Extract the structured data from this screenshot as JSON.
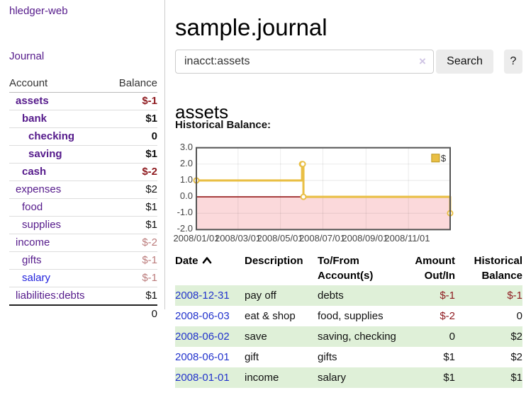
{
  "sidebar": {
    "app_title": "hledger-web",
    "journal_link": "Journal",
    "table": {
      "account_header": "Account",
      "balance_header": "Balance",
      "rows": [
        {
          "name": "assets",
          "depth": 1,
          "bold": true,
          "balance": "$-1",
          "balance_class": "neg-strong",
          "link": "purple"
        },
        {
          "name": "bank",
          "depth": 2,
          "bold": true,
          "balance": "$1",
          "balance_class": "",
          "link": "purple"
        },
        {
          "name": "checking",
          "depth": 3,
          "bold": true,
          "balance": "0",
          "balance_class": "",
          "link": "purple"
        },
        {
          "name": "saving",
          "depth": 3,
          "bold": true,
          "balance": "$1",
          "balance_class": "",
          "link": "purple"
        },
        {
          "name": "cash",
          "depth": 2,
          "bold": true,
          "balance": "$-2",
          "balance_class": "neg-strong",
          "link": "purple"
        },
        {
          "name": "expenses",
          "depth": 1,
          "bold": false,
          "balance": "$2",
          "balance_class": "",
          "link": "purple"
        },
        {
          "name": "food",
          "depth": 2,
          "bold": false,
          "balance": "$1",
          "balance_class": "",
          "link": "purple"
        },
        {
          "name": "supplies",
          "depth": 2,
          "bold": false,
          "balance": "$1",
          "balance_class": "",
          "link": "purple"
        },
        {
          "name": "income",
          "depth": 1,
          "bold": false,
          "balance": "$-2",
          "balance_class": "neg-muted",
          "link": "purple"
        },
        {
          "name": "gifts",
          "depth": 2,
          "bold": false,
          "balance": "$-1",
          "balance_class": "neg-muted",
          "link": "purple"
        },
        {
          "name": "salary",
          "depth": 2,
          "bold": false,
          "balance": "$-1",
          "balance_class": "neg-muted",
          "link": "blue"
        },
        {
          "name": "liabilities:debts",
          "depth": 1,
          "bold": false,
          "balance": "$1",
          "balance_class": "",
          "link": "purple"
        }
      ],
      "total": "0"
    }
  },
  "main": {
    "title": "sample.journal",
    "search": {
      "value": "inacct:assets",
      "clear_icon": "×",
      "search_button": "Search",
      "help_button": "?"
    },
    "account_heading": "assets",
    "chart_title": "Historical Balance:"
  },
  "chart_data": {
    "type": "line",
    "step": true,
    "title": "Historical Balance:",
    "legend": {
      "label": "$",
      "position": "top-right"
    },
    "series": [
      {
        "name": "$",
        "color": "#e9bf45",
        "points": [
          {
            "date": "2008-01-01",
            "value": 1
          },
          {
            "date": "2008-06-01",
            "value": 2
          },
          {
            "date": "2008-06-02",
            "value": 2
          },
          {
            "date": "2008-06-03",
            "value": 0
          },
          {
            "date": "2008-12-31",
            "value": -1
          }
        ]
      }
    ],
    "x_domain": [
      "2008-01-01",
      "2008-12-31"
    ],
    "y_domain": [
      -2,
      3
    ],
    "y_ticks": [
      {
        "value": 3,
        "label": "3.0"
      },
      {
        "value": 2,
        "label": "2.0"
      },
      {
        "value": 1,
        "label": "1.0"
      },
      {
        "value": 0,
        "label": "0.0"
      },
      {
        "value": -1,
        "label": "-1.0"
      },
      {
        "value": -2,
        "label": "-2.0"
      }
    ],
    "x_ticks": [
      {
        "date": "2008-01-01",
        "label": "2008/01/01"
      },
      {
        "date": "2008-03-01",
        "label": "2008/03/01"
      },
      {
        "date": "2008-05-01",
        "label": "2008/05/01"
      },
      {
        "date": "2008-07-01",
        "label": "2008/07/01"
      },
      {
        "date": "2008-09-01",
        "label": "2008/09/01"
      },
      {
        "date": "2008-11-01",
        "label": "2008/11/01"
      }
    ],
    "grid": true,
    "plot_border_color": "#545454",
    "grid_line_color": "rgba(0,0,0,0.08)",
    "zero_line_color": "#941616",
    "negative_region_color": "#fbd9db",
    "marker_fill": "#ffffff",
    "legend_box_border": "#b8941f"
  },
  "register_table": {
    "headers": [
      {
        "line1": "Date",
        "line2": "",
        "align": "left",
        "sort": "asc"
      },
      {
        "line1": "Description",
        "line2": "",
        "align": "left"
      },
      {
        "line1": "To/From",
        "line2": "Account(s)",
        "align": "left"
      },
      {
        "line1": "Amount",
        "line2": "Out/In",
        "align": "right"
      },
      {
        "line1": "Historical",
        "line2": "Balance",
        "align": "right"
      }
    ],
    "rows": [
      {
        "date": "2008-12-31",
        "description": "pay off",
        "accounts": "debts",
        "amount": "$-1",
        "amount_neg": true,
        "balance": "$-1",
        "balance_neg": true,
        "shaded": true
      },
      {
        "date": "2008-06-03",
        "description": "eat & shop",
        "accounts": "food, supplies",
        "amount": "$-2",
        "amount_neg": true,
        "balance": "0",
        "balance_neg": false,
        "shaded": false
      },
      {
        "date": "2008-06-02",
        "description": "save",
        "accounts": "saving, checking",
        "amount": "0",
        "amount_neg": false,
        "balance": "$2",
        "balance_neg": false,
        "shaded": true
      },
      {
        "date": "2008-06-01",
        "description": "gift",
        "accounts": "gifts",
        "amount": "$1",
        "amount_neg": false,
        "balance": "$2",
        "balance_neg": false,
        "shaded": false
      },
      {
        "date": "2008-01-01",
        "description": "income",
        "accounts": "salary",
        "amount": "$1",
        "amount_neg": false,
        "balance": "$1",
        "balance_neg": false,
        "shaded": true
      }
    ]
  }
}
